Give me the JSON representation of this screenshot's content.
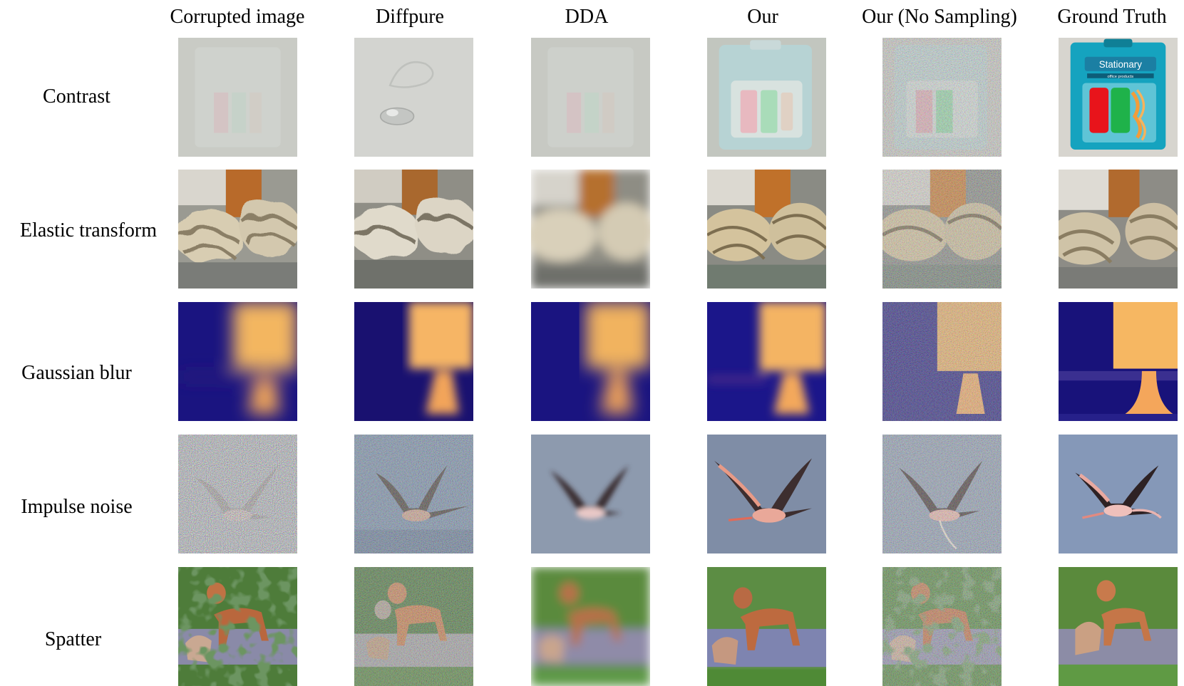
{
  "columns": [
    {
      "label": "Corrupted image"
    },
    {
      "label": "Diffpure"
    },
    {
      "label": "DDA"
    },
    {
      "label": "Our"
    },
    {
      "label": "Our (No Sampling)"
    },
    {
      "label": "Ground Truth"
    }
  ],
  "rows": [
    {
      "label": "Contrast",
      "scene": "stationery"
    },
    {
      "label": "Elastic transform",
      "scene": "rope"
    },
    {
      "label": "Gaussian blur",
      "scene": "lamp"
    },
    {
      "label": "Impulse noise",
      "scene": "flamingo"
    },
    {
      "label": "Spatter",
      "scene": "dogs"
    }
  ],
  "ground_truth_text": {
    "brand": "Stationary",
    "subline": "office products"
  }
}
